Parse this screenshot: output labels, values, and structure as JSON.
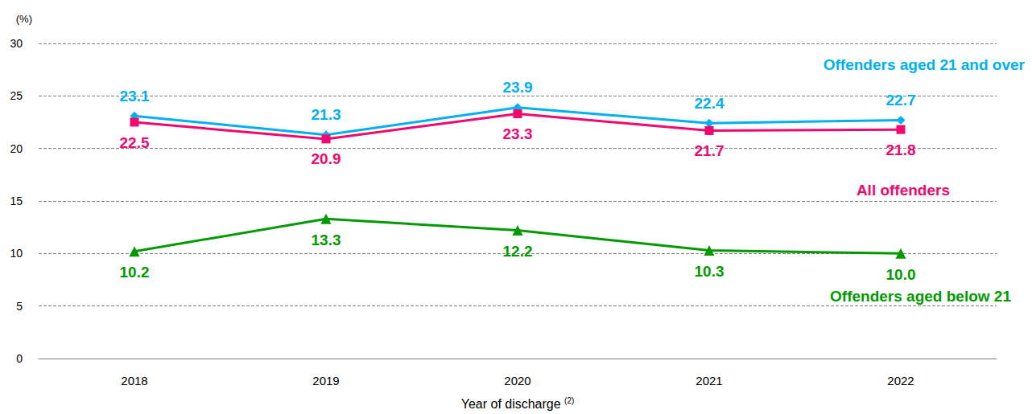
{
  "chart_data": {
    "type": "line",
    "y_label": "(%)",
    "x_label": "Year of discharge",
    "x_label_superscript": "(2)",
    "categories": [
      "2018",
      "2019",
      "2020",
      "2021",
      "2022"
    ],
    "ylim": [
      0,
      30
    ],
    "yticks": [
      0,
      5,
      10,
      15,
      20,
      25,
      30
    ],
    "grid": true,
    "data_labels": true,
    "series": [
      {
        "name": "Offenders aged 21 and over",
        "color": "#00b0f0",
        "marker": "diamond",
        "values": [
          23.1,
          21.3,
          23.9,
          22.4,
          22.7
        ]
      },
      {
        "name": "All offenders",
        "color": "#f0086e",
        "marker": "square",
        "values": [
          22.5,
          20.9,
          23.3,
          21.7,
          21.8
        ]
      },
      {
        "name": "Offenders aged below 21",
        "color": "#009a00",
        "marker": "triangle",
        "values": [
          10.2,
          13.3,
          12.2,
          10.3,
          10.0
        ],
        "value_labels": [
          "10.2",
          "13.3",
          "12.2",
          "10.3",
          "10.0"
        ]
      }
    ]
  }
}
